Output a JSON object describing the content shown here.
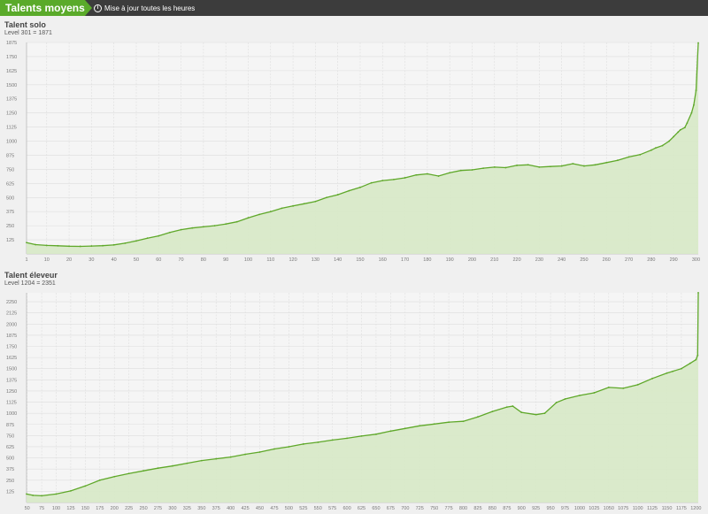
{
  "header": {
    "title": "Talents moyens",
    "info_text": "Mise à jour toutes les heures",
    "info_icon": "info-icon"
  },
  "colors": {
    "accent": "#5aaa2a",
    "line": "#5fa82a",
    "fill": "#d7e9c6",
    "topbar": "#3c3c3c"
  },
  "chart_data": [
    {
      "type": "area",
      "title": "Talent solo",
      "subtitle": "Level 301 = 1871",
      "x_ticks": [
        1,
        10,
        20,
        30,
        40,
        50,
        60,
        70,
        80,
        90,
        100,
        110,
        120,
        130,
        140,
        150,
        160,
        170,
        180,
        190,
        200,
        210,
        220,
        230,
        240,
        250,
        260,
        270,
        280,
        290,
        300
      ],
      "y_ticks": [
        125,
        250,
        375,
        500,
        625,
        750,
        875,
        1000,
        1125,
        1250,
        1375,
        1500,
        1625,
        1750,
        1875
      ],
      "xlim": [
        1,
        301
      ],
      "ylim": [
        0,
        1875
      ],
      "grid": true,
      "x": [
        1,
        5,
        10,
        15,
        20,
        25,
        30,
        35,
        40,
        45,
        50,
        55,
        60,
        65,
        70,
        75,
        80,
        85,
        90,
        95,
        100,
        105,
        110,
        115,
        120,
        125,
        130,
        135,
        140,
        145,
        150,
        155,
        160,
        165,
        170,
        175,
        180,
        185,
        190,
        195,
        200,
        205,
        210,
        215,
        220,
        225,
        230,
        235,
        240,
        245,
        250,
        255,
        260,
        265,
        270,
        275,
        280,
        282,
        285,
        288,
        290,
        292,
        293,
        295,
        296,
        298,
        299,
        300,
        301
      ],
      "y": [
        100,
        82,
        75,
        72,
        68,
        67,
        70,
        73,
        80,
        95,
        115,
        140,
        160,
        190,
        215,
        230,
        240,
        250,
        265,
        285,
        320,
        350,
        375,
        405,
        425,
        445,
        465,
        500,
        525,
        560,
        590,
        630,
        650,
        660,
        675,
        700,
        710,
        690,
        720,
        740,
        745,
        760,
        770,
        765,
        785,
        790,
        770,
        775,
        780,
        800,
        780,
        790,
        810,
        830,
        860,
        880,
        920,
        940,
        960,
        1000,
        1040,
        1080,
        1100,
        1120,
        1160,
        1250,
        1320,
        1450,
        1871
      ]
    },
    {
      "type": "area",
      "title": "Talent éleveur",
      "subtitle": "Level 1204 = 2351",
      "x_ticks": [
        50,
        75,
        100,
        125,
        150,
        175,
        200,
        225,
        250,
        275,
        300,
        325,
        350,
        375,
        400,
        425,
        450,
        475,
        500,
        525,
        550,
        575,
        600,
        625,
        650,
        675,
        700,
        725,
        750,
        775,
        800,
        825,
        850,
        875,
        900,
        925,
        950,
        975,
        1000,
        1025,
        1050,
        1075,
        1100,
        1125,
        1150,
        1175,
        1200
      ],
      "y_ticks": [
        125,
        250,
        375,
        500,
        625,
        750,
        875,
        1000,
        1125,
        1250,
        1375,
        1500,
        1625,
        1750,
        1875,
        2000,
        2125,
        2250
      ],
      "xlim": [
        49,
        1204
      ],
      "ylim": [
        0,
        2350
      ],
      "grid": true,
      "x": [
        49,
        60,
        75,
        100,
        125,
        150,
        175,
        200,
        225,
        250,
        275,
        300,
        325,
        350,
        375,
        400,
        425,
        450,
        475,
        500,
        525,
        550,
        575,
        600,
        625,
        650,
        675,
        700,
        725,
        750,
        775,
        800,
        825,
        850,
        875,
        885,
        900,
        925,
        940,
        960,
        975,
        1000,
        1025,
        1050,
        1075,
        1100,
        1125,
        1150,
        1160,
        1175,
        1190,
        1200,
        1203,
        1204
      ],
      "y": [
        95,
        80,
        75,
        95,
        130,
        185,
        250,
        290,
        325,
        355,
        385,
        410,
        440,
        470,
        490,
        510,
        540,
        565,
        600,
        625,
        655,
        675,
        700,
        720,
        745,
        765,
        800,
        830,
        860,
        880,
        900,
        910,
        960,
        1020,
        1070,
        1080,
        1010,
        985,
        1000,
        1120,
        1160,
        1200,
        1230,
        1290,
        1280,
        1320,
        1390,
        1450,
        1470,
        1500,
        1560,
        1600,
        1650,
        2351
      ]
    }
  ]
}
